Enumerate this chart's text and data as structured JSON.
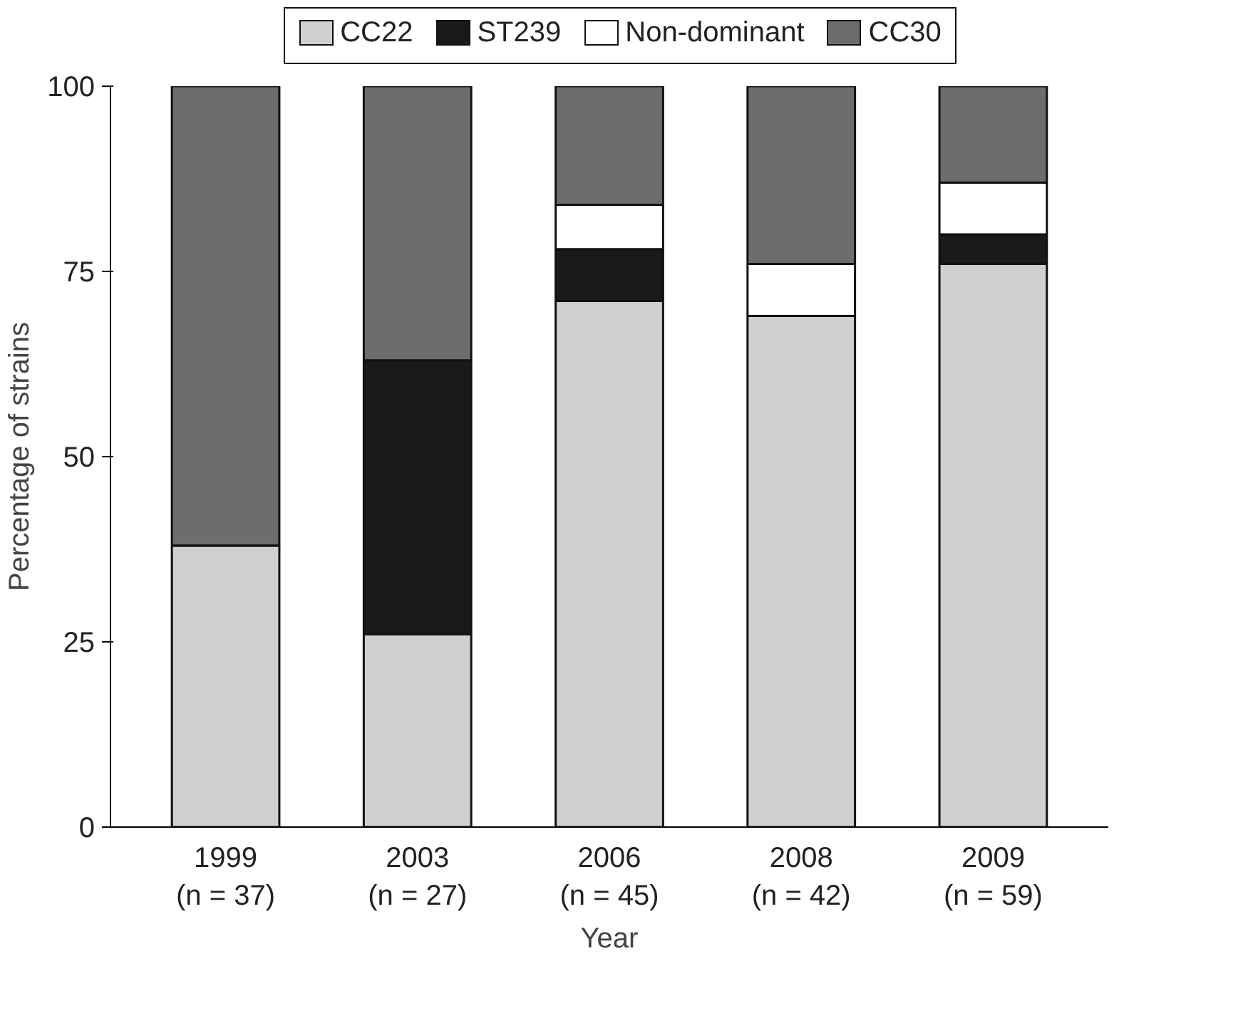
{
  "chart_data": {
    "type": "bar",
    "stacked": true,
    "xlabel": "Year",
    "ylabel": "Percentage of strains",
    "categories": [
      "1999\n(n = 37)",
      "2003\n(n = 27)",
      "2006\n(n = 45)",
      "2008\n(n = 42)",
      "2009\n(n = 59)"
    ],
    "series": [
      {
        "name": "CC22",
        "color": "#d0d0d2",
        "values": [
          38,
          26,
          71,
          69,
          76
        ]
      },
      {
        "name": "ST239",
        "color": "#1a1a1a",
        "values": [
          0,
          37,
          7,
          0,
          4
        ]
      },
      {
        "name": "Non-dominant",
        "color": "#ffffff",
        "values": [
          0,
          0,
          6,
          7,
          7
        ]
      },
      {
        "name": "CC30",
        "color": "#6d6d6d",
        "values": [
          62,
          37,
          16,
          24,
          13
        ]
      }
    ],
    "ylim": [
      0,
      100
    ],
    "yticks": [
      0,
      25,
      50,
      75,
      100
    ],
    "grid": false,
    "legend": "top"
  }
}
